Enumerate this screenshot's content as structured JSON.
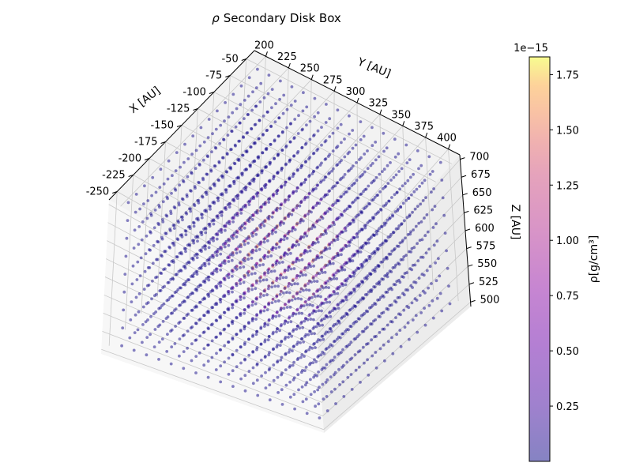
{
  "chart_data": {
    "type": "scatter",
    "projection": "3d",
    "title_prefix": "ρ",
    "title_text": "Secondary Disk Box",
    "xlabel": "X [AU]",
    "ylabel": "Y [AU]",
    "zlabel": "Z [AU]",
    "xlim": [
      -262.5,
      -37.5
    ],
    "ylim": [
      187.5,
      412.5
    ],
    "zlim": [
      493.75,
      706.25
    ],
    "x_ticks": [
      "-50",
      "-75",
      "-100",
      "-125",
      "-150",
      "-175",
      "-200",
      "-225",
      "-250"
    ],
    "x_tick_values": [
      -50,
      -75,
      -100,
      -125,
      -150,
      -175,
      -200,
      -225,
      -250
    ],
    "y_ticks": [
      "200",
      "225",
      "250",
      "275",
      "300",
      "325",
      "350",
      "375",
      "400"
    ],
    "y_tick_values": [
      200,
      225,
      250,
      275,
      300,
      325,
      350,
      375,
      400
    ],
    "z_ticks": [
      "700",
      "675",
      "650",
      "625",
      "600",
      "575",
      "550",
      "525",
      "500"
    ],
    "z_tick_values": [
      700,
      675,
      650,
      625,
      600,
      575,
      550,
      525,
      500
    ],
    "grid": true,
    "colormap": "plasma",
    "alpha": 0.5,
    "grid_points": {
      "x_start": -250,
      "x_step": 12.5,
      "y_start": 200,
      "y_step": 12.5,
      "z_start": 500,
      "z_step": 25,
      "nx": 17,
      "ny": 17,
      "nz": 9
    },
    "density_peak": {
      "x": -150,
      "y": 300,
      "z": 600,
      "value": 1.83e-15
    },
    "colorbar": {
      "label": "ρ[g/cm³]",
      "offset_text": "1e−15",
      "min": 0.0,
      "max": 1.83,
      "ticks": [
        "1.75",
        "1.50",
        "1.25",
        "1.00",
        "0.75",
        "0.50",
        "0.25"
      ],
      "tick_values": [
        1.75,
        1.5,
        1.25,
        1.0,
        0.75,
        0.5,
        0.25
      ]
    }
  }
}
